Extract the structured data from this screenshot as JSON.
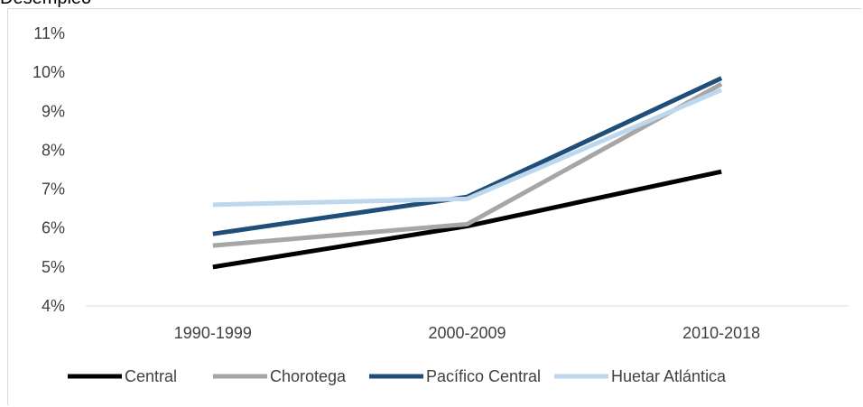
{
  "title_partial": "Desempleo",
  "chart_data": {
    "type": "line",
    "categories": [
      "1990-1999",
      "2000-2009",
      "2010-2018"
    ],
    "y_tick_labels": [
      "4%",
      "5%",
      "6%",
      "7%",
      "8%",
      "9%",
      "10%",
      "11%"
    ],
    "ylim": [
      4,
      11
    ],
    "grid": false,
    "legend_position": "bottom",
    "series": [
      {
        "name": "Central",
        "color": "#000000",
        "values": [
          5.0,
          6.05,
          7.45
        ]
      },
      {
        "name": "Chorotega",
        "color": "#a6a6a6",
        "values": [
          5.55,
          6.1,
          9.7
        ]
      },
      {
        "name": "Pacífico Central",
        "color": "#1f4e79",
        "values": [
          5.85,
          6.8,
          9.85
        ]
      },
      {
        "name": "Huetar Atlántica",
        "color": "#bdd7ee",
        "values": [
          6.6,
          6.75,
          9.55
        ]
      }
    ]
  }
}
